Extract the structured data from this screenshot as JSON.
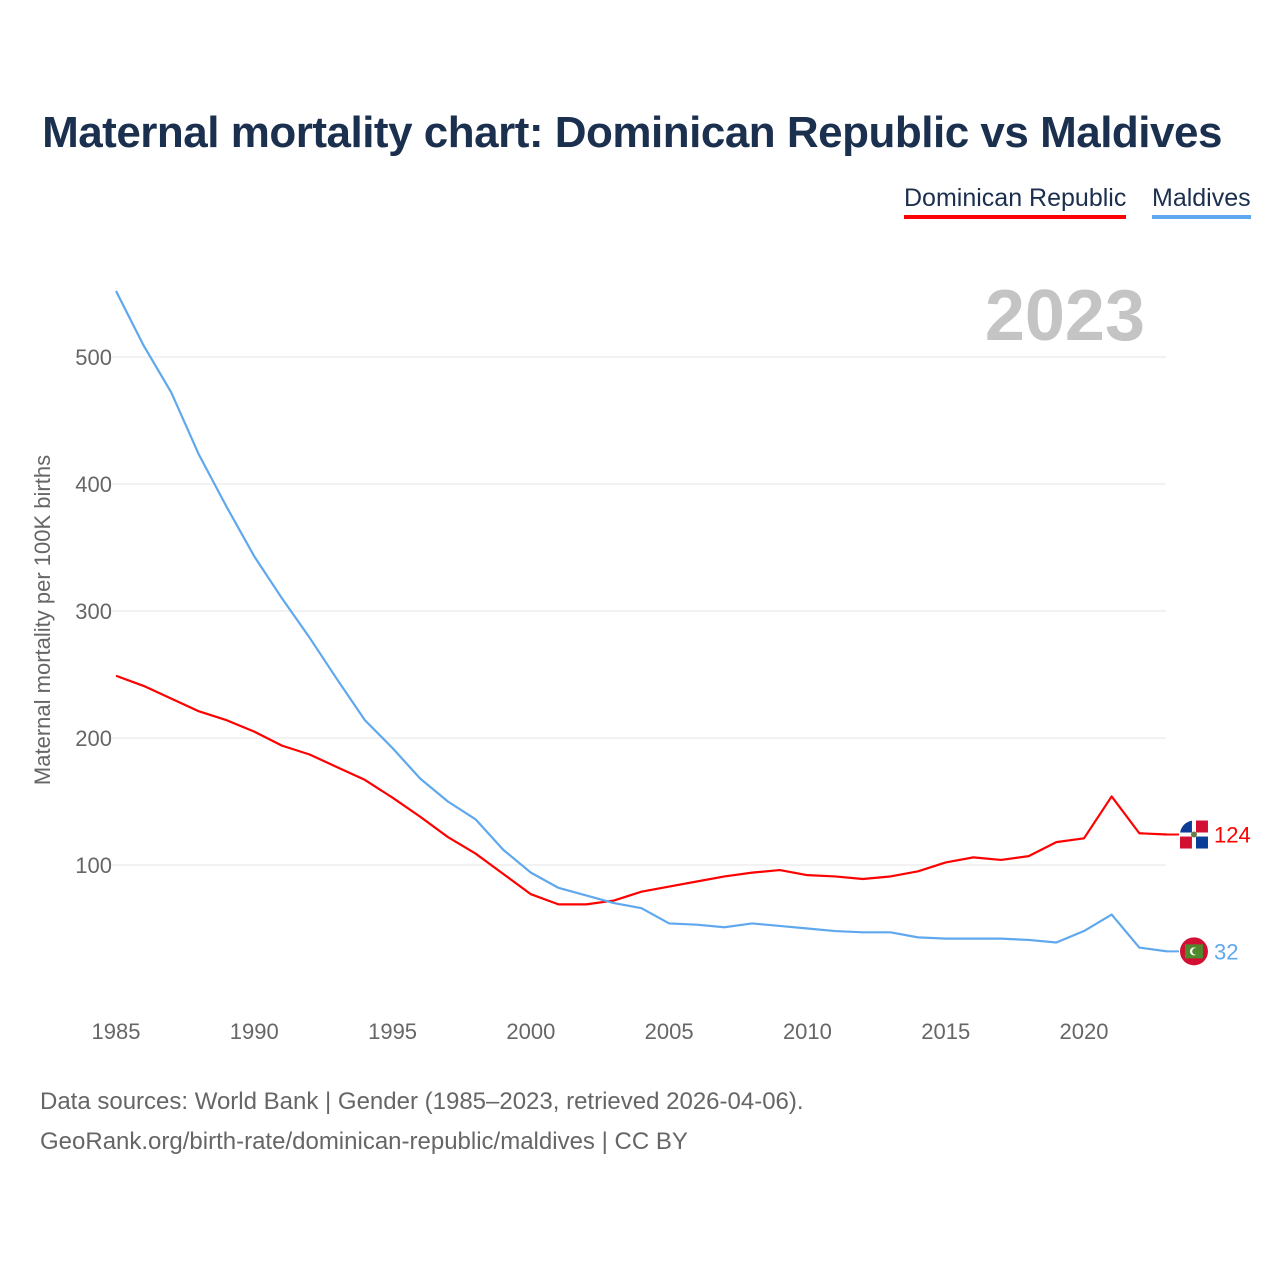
{
  "title": "Maternal mortality chart: Dominican Republic vs Maldives",
  "footer": {
    "line1": "Data sources: World Bank | Gender (1985–2023, retrieved 2026-04-06).",
    "line2": "GeoRank.org/birth-rate/dominican-republic/maldives | CC BY"
  },
  "chart_data": {
    "type": "line",
    "title": "Maternal mortality chart: Dominican Republic vs Maldives",
    "year_label": "2023",
    "ylabel": "Maternal mortality per 100K births",
    "xlabel": "",
    "xlim": [
      1985,
      2023
    ],
    "ylim": [
      0,
      560
    ],
    "x_ticks": [
      1985,
      1990,
      1995,
      2000,
      2005,
      2010,
      2015,
      2020
    ],
    "y_ticks": [
      100,
      200,
      300,
      400,
      500
    ],
    "grid": true,
    "legend_position": "top-right",
    "x": [
      1985,
      1986,
      1987,
      1988,
      1989,
      1990,
      1991,
      1992,
      1993,
      1994,
      1995,
      1996,
      1997,
      1998,
      1999,
      2000,
      2001,
      2002,
      2003,
      2004,
      2005,
      2006,
      2007,
      2008,
      2009,
      2010,
      2011,
      2012,
      2013,
      2014,
      2015,
      2016,
      2017,
      2018,
      2019,
      2020,
      2021,
      2022,
      2023
    ],
    "series": [
      {
        "name": "Dominican Republic",
        "color": "#ff0000",
        "end_label": "124",
        "values": [
          249,
          241,
          231,
          221,
          214,
          205,
          194,
          187,
          177,
          167,
          153,
          138,
          122,
          109,
          93,
          77,
          69,
          69,
          72,
          79,
          83,
          87,
          91,
          94,
          96,
          92,
          91,
          89,
          91,
          95,
          102,
          106,
          104,
          107,
          118,
          121,
          154,
          125,
          124
        ]
      },
      {
        "name": "Maldives",
        "color": "#5fa8ee",
        "end_label": "32",
        "values": [
          552,
          509,
          472,
          423,
          382,
          343,
          310,
          279,
          246,
          214,
          192,
          168,
          150,
          136,
          112,
          94,
          82,
          76,
          70,
          66,
          54,
          53,
          51,
          54,
          52,
          50,
          48,
          47,
          47,
          43,
          42,
          42,
          42,
          41,
          39,
          48,
          61,
          35,
          32
        ]
      }
    ]
  }
}
